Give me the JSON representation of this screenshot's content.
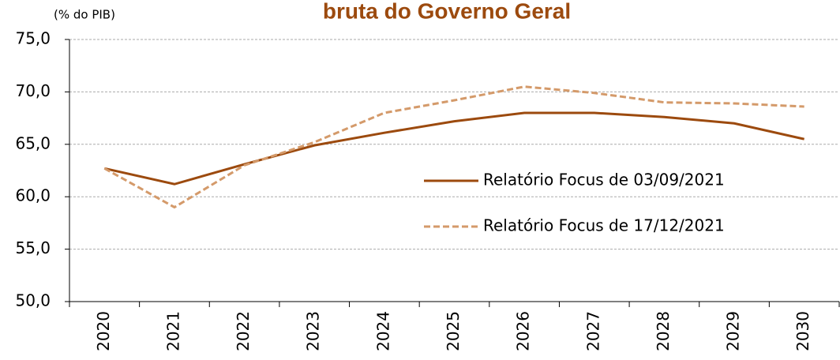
{
  "chart_data": {
    "type": "line",
    "title": "bruta do Governo Geral",
    "y_label": "(% do PIB)",
    "categories": [
      "2020",
      "2021",
      "2022",
      "2023",
      "2024",
      "2025",
      "2026",
      "2027",
      "2028",
      "2029",
      "2030"
    ],
    "series": [
      {
        "name": "Relatório Focus de 03/09/2021",
        "color": "#9c4a0e",
        "style": "solid",
        "values": [
          62.7,
          61.2,
          63.1,
          64.9,
          66.1,
          67.2,
          68.0,
          68.0,
          67.6,
          67.0,
          65.5
        ]
      },
      {
        "name": "Relatório Focus de 17/12/2021",
        "color": "#d49a6a",
        "style": "dashed",
        "values": [
          62.7,
          59.0,
          63.0,
          65.2,
          68.0,
          69.2,
          70.5,
          69.9,
          69.0,
          68.9,
          68.6
        ]
      }
    ],
    "ylim": [
      50,
      75
    ],
    "yticks": [
      {
        "value": 50,
        "label": "50,0"
      },
      {
        "value": 55,
        "label": "55,0"
      },
      {
        "value": 60,
        "label": "60,0"
      },
      {
        "value": 65,
        "label": "65,0"
      },
      {
        "value": 70,
        "label": "70,0"
      },
      {
        "value": 75,
        "label": "75,0"
      }
    ],
    "grid": true
  }
}
